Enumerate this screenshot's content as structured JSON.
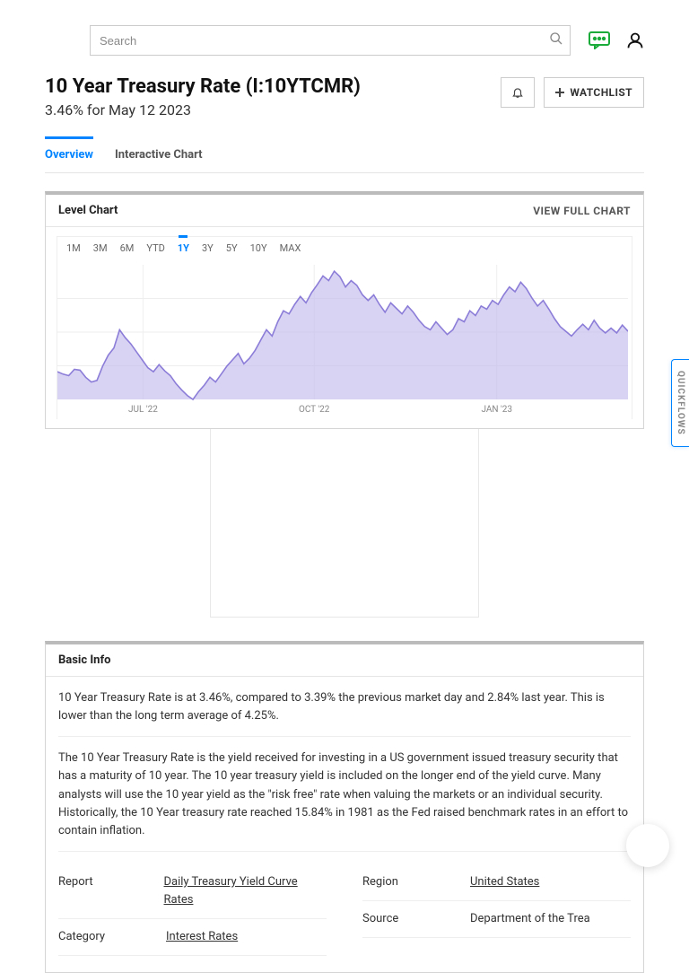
{
  "search": {
    "placeholder": "Search"
  },
  "header": {
    "title": "10 Year Treasury Rate (I:10YTCMR)",
    "subtitle": "3.46% for May 12 2023",
    "watchlist_label": "WATCHLIST"
  },
  "tabs": {
    "overview": "Overview",
    "interactive": "Interactive Chart"
  },
  "level_chart": {
    "title": "Level Chart",
    "full_link": "VIEW FULL CHART",
    "ranges": [
      "1M",
      "3M",
      "6M",
      "YTD",
      "1Y",
      "3Y",
      "5Y",
      "10Y",
      "MAX"
    ],
    "active_range": "1Y",
    "x_labels": [
      "JUL '22",
      "OCT '22",
      "JAN '23"
    ],
    "series_color": "#8b7dd8",
    "fill_color": "#c5bced",
    "grid_color": "#eeeeee",
    "ymin": 2.6,
    "ymax": 4.3,
    "points": [
      2.95,
      2.92,
      2.9,
      2.98,
      2.97,
      2.88,
      2.82,
      2.84,
      3.02,
      3.16,
      3.25,
      3.48,
      3.38,
      3.3,
      3.2,
      3.1,
      3.0,
      2.95,
      3.04,
      2.96,
      2.9,
      2.8,
      2.72,
      2.65,
      2.6,
      2.7,
      2.78,
      2.88,
      2.82,
      2.92,
      3.02,
      3.1,
      3.18,
      3.05,
      3.12,
      3.22,
      3.35,
      3.48,
      3.4,
      3.58,
      3.72,
      3.68,
      3.8,
      3.9,
      3.82,
      3.95,
      4.05,
      4.16,
      4.1,
      4.22,
      4.15,
      4.02,
      4.1,
      4.04,
      3.92,
      3.85,
      3.92,
      3.8,
      3.7,
      3.82,
      3.75,
      3.68,
      3.78,
      3.7,
      3.6,
      3.52,
      3.48,
      3.58,
      3.5,
      3.42,
      3.48,
      3.62,
      3.58,
      3.72,
      3.66,
      3.78,
      3.74,
      3.85,
      3.8,
      3.92,
      4.02,
      3.96,
      4.08,
      4.0,
      3.88,
      3.78,
      3.85,
      3.74,
      3.62,
      3.52,
      3.46,
      3.4,
      3.48,
      3.55,
      3.48,
      3.6,
      3.5,
      3.44,
      3.5,
      3.44,
      3.54,
      3.46
    ]
  },
  "basic_info": {
    "title": "Basic Info",
    "para1": "10 Year Treasury Rate is at 3.46%, compared to 3.39% the previous market day and 2.84% last year. This is lower than the long term average of 4.25%.",
    "para2": "The 10 Year Treasury Rate is the yield received for investing in a US government issued treasury security that has a maturity of 10 year. The 10 year treasury yield is included on the longer end of the yield curve. Many analysts will use the 10 year yield as the \"risk free\" rate when valuing the markets or an individual security. Historically, the 10 Year treasury rate reached 15.84% in 1981 as the Fed raised benchmark rates in an effort to contain inflation.",
    "meta": {
      "report_label": "Report",
      "report_value": "Daily Treasury Yield Curve Rates",
      "category_label": "Category",
      "category_value": "Interest Rates",
      "region_label": "Region",
      "region_value": "United States",
      "source_label": "Source",
      "source_value": "Department of the Trea"
    }
  },
  "quickflows_label": "QUICKFLOWS"
}
